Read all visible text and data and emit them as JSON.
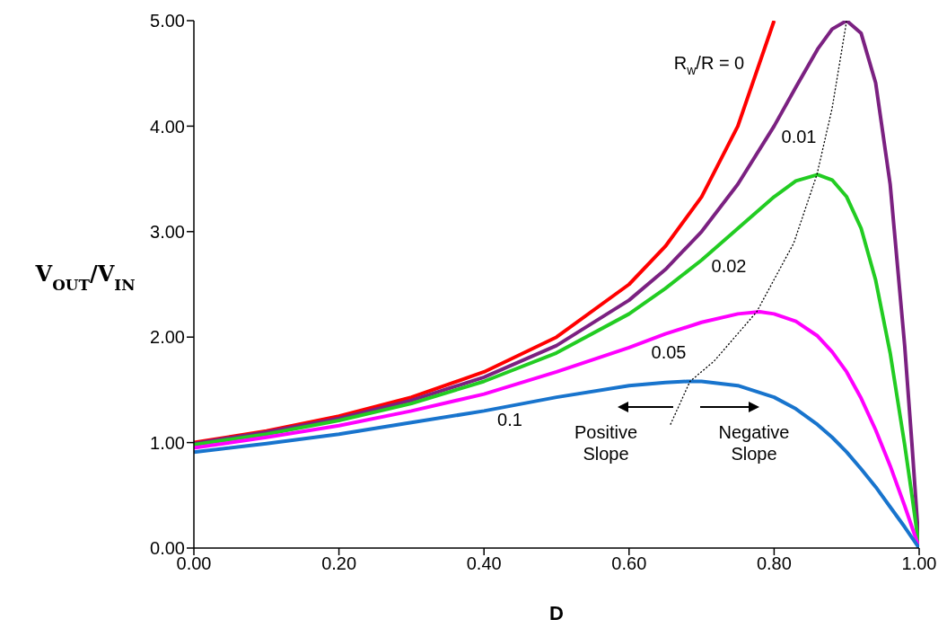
{
  "chart_data": {
    "type": "line",
    "xlabel": "D",
    "ylabel": "V$_{OUT}$/V$_{IN}$",
    "xlim": [
      0,
      1
    ],
    "ylim": [
      0,
      5
    ],
    "xticks": [
      {
        "value": 0,
        "label": "0.00"
      },
      {
        "value": 0.2,
        "label": "0.20"
      },
      {
        "value": 0.4,
        "label": "0.40"
      },
      {
        "value": 0.6,
        "label": "0.60"
      },
      {
        "value": 0.8,
        "label": "0.80"
      },
      {
        "value": 1,
        "label": "1.00"
      }
    ],
    "yticks": [
      {
        "value": 0,
        "label": "0.00"
      },
      {
        "value": 1,
        "label": "1.00"
      },
      {
        "value": 2,
        "label": "2.00"
      },
      {
        "value": 3,
        "label": "3.00"
      },
      {
        "value": 4,
        "label": "4.00"
      },
      {
        "value": 5,
        "label": "5.00"
      }
    ],
    "marker": "none",
    "series": [
      {
        "color": "#ff0000",
        "x": [
          0,
          0.1,
          0.2,
          0.3,
          0.4,
          0.5,
          0.6,
          0.65,
          0.7,
          0.75,
          0.8
        ],
        "values": [
          1,
          1.11,
          1.25,
          1.43,
          1.67,
          2,
          2.5,
          2.86,
          3.33,
          4,
          5
        ]
      },
      {
        "color": "#7b2181",
        "x": [
          0,
          0.1,
          0.2,
          0.3,
          0.4,
          0.5,
          0.6,
          0.65,
          0.7,
          0.75,
          0.8,
          0.83,
          0.86,
          0.88,
          0.9,
          0.92,
          0.94,
          0.96,
          0.98,
          0.99,
          1
        ],
        "values": [
          0.99,
          1.1,
          1.23,
          1.4,
          1.62,
          1.92,
          2.35,
          2.64,
          3,
          3.45,
          4,
          4.37,
          4.73,
          4.92,
          5,
          4.88,
          4.41,
          3.45,
          1.92,
          0.99,
          0
        ]
      },
      {
        "color": "#22cc22",
        "x": [
          0,
          0.1,
          0.2,
          0.3,
          0.4,
          0.5,
          0.6,
          0.65,
          0.7,
          0.75,
          0.8,
          0.83,
          0.86,
          0.88,
          0.9,
          0.92,
          0.94,
          0.96,
          0.98,
          0.99,
          1
        ],
        "values": [
          0.98,
          1.08,
          1.21,
          1.37,
          1.58,
          1.85,
          2.22,
          2.46,
          2.73,
          3.03,
          3.33,
          3.48,
          3.54,
          3.49,
          3.33,
          3.03,
          2.54,
          1.85,
          0.98,
          0.5,
          0
        ]
      },
      {
        "color": "#ff00ff",
        "x": [
          0,
          0.1,
          0.2,
          0.3,
          0.4,
          0.5,
          0.6,
          0.65,
          0.7,
          0.75,
          0.78,
          0.8,
          0.83,
          0.86,
          0.88,
          0.9,
          0.92,
          0.94,
          0.96,
          0.98,
          0.99,
          1
        ],
        "values": [
          0.95,
          1.05,
          1.16,
          1.3,
          1.46,
          1.67,
          1.9,
          2.03,
          2.14,
          2.22,
          2.24,
          2.22,
          2.15,
          2.01,
          1.86,
          1.67,
          1.42,
          1.12,
          0.78,
          0.4,
          0.2,
          0
        ]
      },
      {
        "color": "#1874cd",
        "x": [
          0,
          0.1,
          0.2,
          0.3,
          0.4,
          0.5,
          0.6,
          0.65,
          0.68,
          0.7,
          0.75,
          0.8,
          0.83,
          0.86,
          0.88,
          0.9,
          0.92,
          0.94,
          0.96,
          0.98,
          0.99,
          1
        ],
        "values": [
          0.91,
          0.99,
          1.08,
          1.19,
          1.3,
          1.43,
          1.54,
          1.57,
          1.58,
          1.58,
          1.54,
          1.43,
          1.32,
          1.17,
          1.05,
          0.91,
          0.75,
          0.58,
          0.39,
          0.2,
          0.1,
          0
        ]
      },
      {
        "color": "#000000",
        "line_style": "dotted",
        "x": [
          0.657,
          0.684,
          0.717,
          0.776,
          0.827,
          0.859,
          0.88,
          0.9
        ],
        "values": [
          1.17,
          1.58,
          1.77,
          2.24,
          2.89,
          3.54,
          4.17,
          5
        ]
      }
    ],
    "annotations": [
      "R$_{w}$/R = 0",
      "0.01",
      "0.02",
      "0.05",
      "0.1",
      "Positive\nSlope",
      "Negative\nSlope"
    ]
  }
}
